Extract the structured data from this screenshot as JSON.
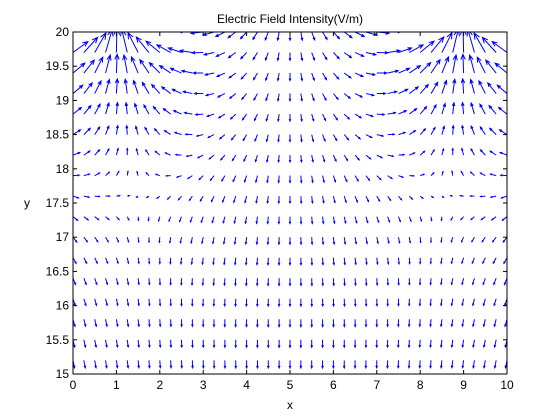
{
  "chart_data": {
    "type": "quiver",
    "title": "Electric Field Intensity(V/m)",
    "xlabel": "x",
    "ylabel": "y",
    "xlim": [
      0,
      10
    ],
    "ylim": [
      15,
      20
    ],
    "xticks": [
      "0",
      "1",
      "2",
      "3",
      "4",
      "5",
      "6",
      "7",
      "8",
      "9",
      "10"
    ],
    "yticks": [
      "15",
      "15.5",
      "16",
      "16.5",
      "17",
      "17.5",
      "18",
      "18.5",
      "19",
      "19.5",
      "20"
    ],
    "grid": false,
    "legend": "none",
    "arrow_color": "#0000ff",
    "field": {
      "x_start": 0,
      "x_end": 10,
      "x_count": 41,
      "y_start": 15.2,
      "y_end": 20,
      "y_count": 17,
      "charges": [
        {
          "x": 1.0,
          "y": 20.8
        },
        {
          "x": 9.0,
          "y": 20.8
        }
      ],
      "uniform_component": [
        0,
        -0.1
      ]
    }
  }
}
